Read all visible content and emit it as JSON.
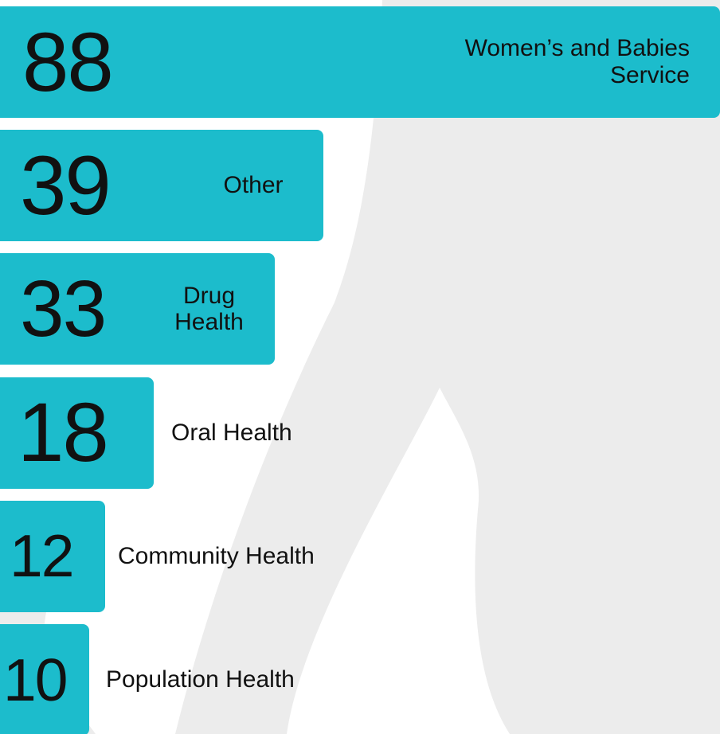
{
  "chart_data": {
    "type": "bar",
    "orientation": "horizontal",
    "categories": [
      "Women’s and Babies Service",
      "Other",
      "Drug Health",
      "Oral Health",
      "Community Health",
      "Population Health"
    ],
    "values": [
      88,
      39,
      33,
      18,
      12,
      10
    ],
    "color": "#1cbccc"
  }
}
